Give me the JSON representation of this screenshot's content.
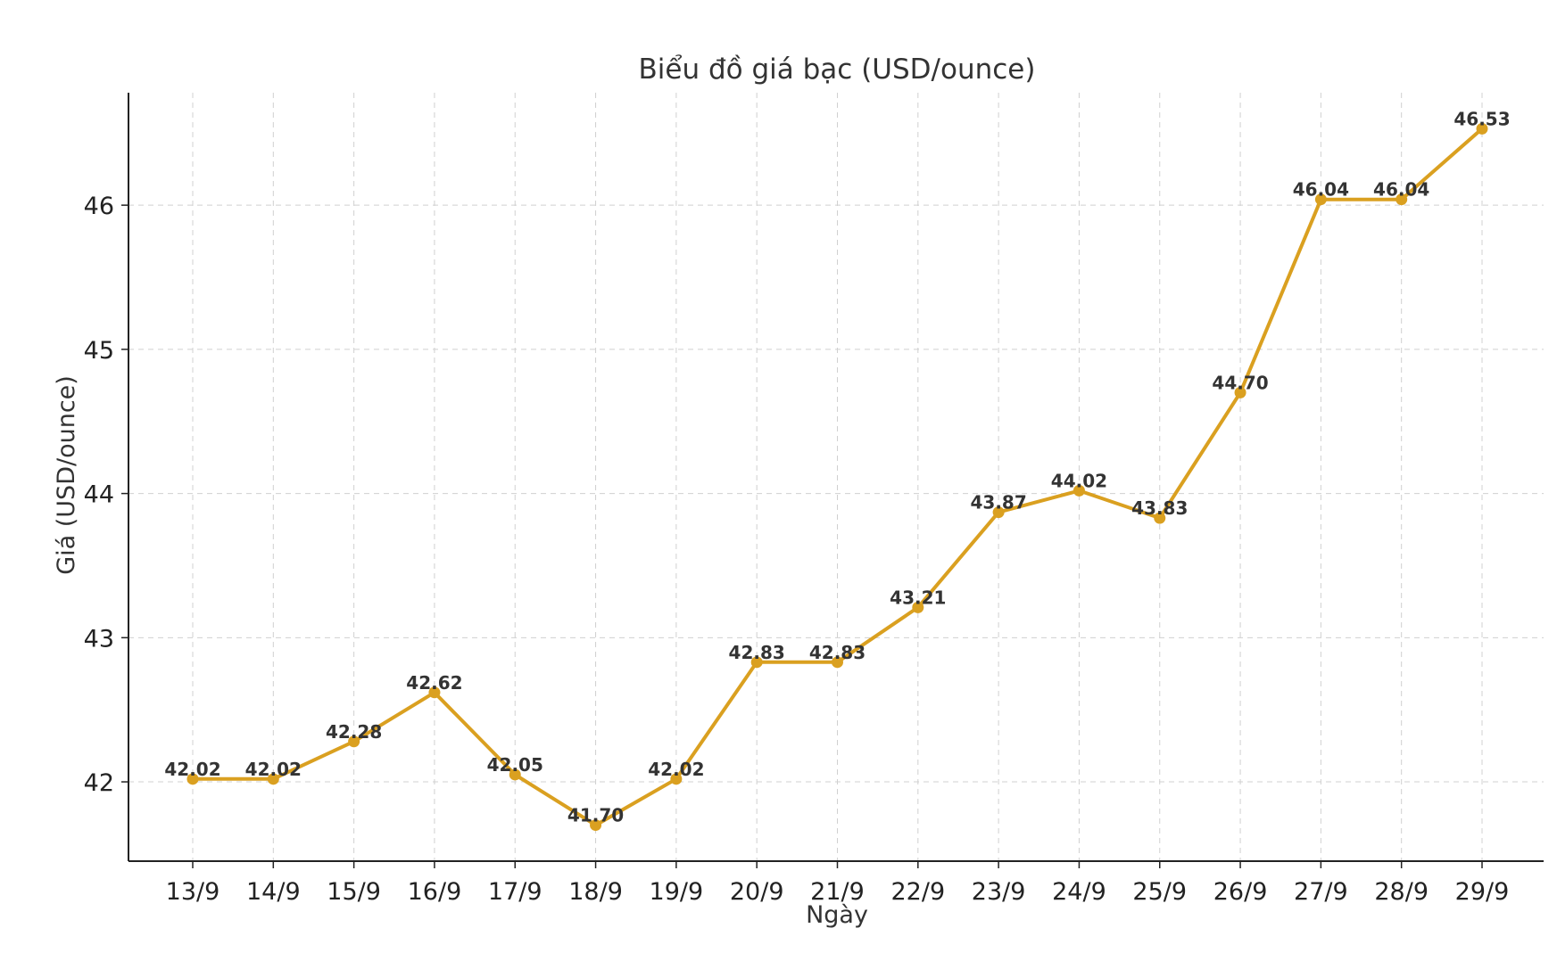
{
  "chart_data": {
    "type": "line",
    "title": "Biểu đồ giá bạc (USD/ounce)",
    "xlabel": "Ngày",
    "ylabel": "Giá (USD/ounce)",
    "categories": [
      "13/9",
      "14/9",
      "15/9",
      "16/9",
      "17/9",
      "18/9",
      "19/9",
      "20/9",
      "21/9",
      "22/9",
      "23/9",
      "24/9",
      "25/9",
      "26/9",
      "27/9",
      "28/9",
      "29/9"
    ],
    "series": [
      {
        "values": [
          42.02,
          42.02,
          42.28,
          42.62,
          42.05,
          41.7,
          42.02,
          42.83,
          42.83,
          43.21,
          43.87,
          44.02,
          43.83,
          44.7,
          46.04,
          46.04,
          46.53
        ],
        "labels": [
          "42.02",
          "42.02",
          "42.28",
          "42.62",
          "42.05",
          "41.70",
          "42.02",
          "42.83",
          "42.83",
          "43.21",
          "43.87",
          "44.02",
          "43.83",
          "44.70",
          "46.04",
          "46.04",
          "46.53"
        ],
        "color": "#DAA020"
      }
    ],
    "yticks": [
      42,
      43,
      44,
      45,
      46
    ],
    "ytick_labels": [
      "42",
      "43",
      "44",
      "45",
      "46"
    ],
    "ylim": [
      41.45,
      46.78
    ],
    "grid": true,
    "legend": "none"
  }
}
